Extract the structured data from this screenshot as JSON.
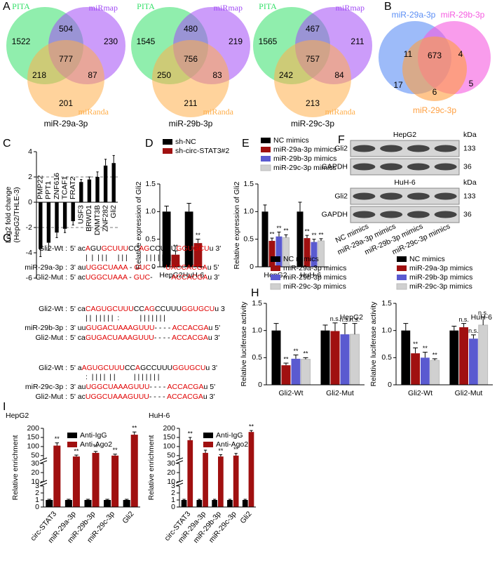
{
  "venn_a": {
    "panel_label": "A",
    "diagrams": [
      {
        "title": "miR-29a-3p",
        "sets": [
          {
            "name": "PITA",
            "color": "#35e06a"
          },
          {
            "name": "miRmap",
            "color": "#a24bf5"
          },
          {
            "name": "miRanda",
            "color": "#ffae4a"
          }
        ],
        "regions": [
          1522,
          504,
          230,
          777,
          218,
          87,
          201
        ]
      },
      {
        "title": "miR-29b-3p",
        "sets": [
          {
            "name": "PITA",
            "color": "#35e06a"
          },
          {
            "name": "miRmap",
            "color": "#a24bf5"
          },
          {
            "name": "miRanda",
            "color": "#ffae4a"
          }
        ],
        "regions": [
          1545,
          480,
          219,
          756,
          250,
          83,
          211
        ]
      },
      {
        "title": "miR-29c-3p",
        "sets": [
          {
            "name": "PITA",
            "color": "#35e06a"
          },
          {
            "name": "miRmap",
            "color": "#a24bf5"
          },
          {
            "name": "miRanda",
            "color": "#ffae4a"
          }
        ],
        "regions": [
          1565,
          467,
          211,
          757,
          242,
          84,
          213
        ]
      }
    ]
  },
  "venn_b": {
    "panel_label": "B",
    "sets": [
      {
        "name": "miR-29a-3p",
        "color": "#5b8ef5"
      },
      {
        "name": "miR-29b-3p",
        "color": "#f55ae0"
      },
      {
        "name": "miR-29c-3p",
        "color": "#ff9f40"
      }
    ],
    "regions": [
      11,
      673,
      4,
      17,
      6,
      5
    ]
  },
  "chart_data": [
    {
      "type": "bar",
      "panel_label": "C",
      "y_label": [
        "Log2 fold change",
        "(HepG2/THLE-3)"
      ],
      "categories": [
        "PMP22",
        "PPT1",
        "ZNF616",
        "TCAF1",
        "FRAT2",
        "USF3",
        "BRWD1",
        "DNMT3B",
        "ZNF282",
        "Gli2"
      ],
      "values": [
        -3.7,
        -3.2,
        -2.4,
        -2.1,
        -1.5,
        1.6,
        1.8,
        2.0,
        2.9,
        3.1
      ],
      "errors": [
        0.6,
        0.6,
        0.4,
        0.3,
        0.3,
        0.2,
        0.2,
        0.4,
        0.5,
        0.6
      ],
      "color": "#000000",
      "ylim": [
        -6,
        4
      ],
      "yticks": [
        -6,
        -4,
        -2,
        0,
        2,
        4
      ],
      "reference_lines": [
        -2,
        2
      ]
    },
    {
      "type": "bar",
      "panel_label": "D",
      "y_label": "Relative expression of Gli2",
      "categories": [
        "HepG2",
        "HuH-6"
      ],
      "series": [
        {
          "name": "sh-NC",
          "color": "#000000",
          "values": [
            1.0,
            1.0
          ],
          "errors": [
            0.1,
            0.15
          ]
        },
        {
          "name": "sh-circ-STAT3#2",
          "color": "#a01010",
          "values": [
            0.22,
            0.43
          ],
          "errors": [
            0.07,
            0.07
          ],
          "significance": [
            "**",
            "**"
          ]
        }
      ],
      "ylim": [
        0,
        1.5
      ],
      "yticks": [
        0,
        0.5,
        {
          "value": 1,
          "label": "1.0"
        },
        1.5
      ]
    },
    {
      "type": "bar",
      "panel_label": "E",
      "y_label": "Relative expression of Gli2",
      "categories": [
        "HepG2",
        "HuH-6"
      ],
      "series": [
        {
          "name": "NC mimics",
          "color": "#000000",
          "values": [
            1.0,
            1.0
          ],
          "errors": [
            0.12,
            0.17
          ]
        },
        {
          "name": "miR-29a-3p mimics",
          "color": "#a01010",
          "values": [
            0.47,
            0.52
          ],
          "errors": [
            0.05,
            0.05
          ],
          "significance": [
            "**",
            "**"
          ]
        },
        {
          "name": "miR-29b-3p mimics",
          "color": "#5a5ad0",
          "values": [
            0.55,
            0.45
          ],
          "errors": [
            0.08,
            0.05
          ],
          "significance": [
            "**",
            "**"
          ]
        },
        {
          "name": "miR-29c-3p mimics",
          "color": "#d0d0d0",
          "values": [
            0.53,
            0.47
          ],
          "errors": [
            0.05,
            0.04
          ],
          "significance": [
            "**",
            "**"
          ]
        }
      ],
      "ylim": [
        0,
        1.5
      ],
      "yticks": [
        0,
        0.5,
        {
          "value": 1,
          "label": "1.0"
        },
        1.5
      ]
    },
    {
      "type": "bar",
      "panel_label": "H",
      "annotation": "HepG2",
      "y_label": "Relative luciferase activity",
      "categories": [
        "Gli2-Wt",
        "Gli2-Mut"
      ],
      "series": [
        {
          "name": "NC mimics",
          "color": "#000000",
          "values": [
            1.0,
            1.0
          ],
          "errors": [
            0.13,
            0.1
          ]
        },
        {
          "name": "miR-29a-3p mimics",
          "color": "#a01010",
          "values": [
            0.36,
            0.99
          ],
          "errors": [
            0.04,
            0.15
          ],
          "significance": [
            "**",
            "n.s."
          ]
        },
        {
          "name": "miR-29b-3p mimics",
          "color": "#5a5ad0",
          "values": [
            0.48,
            0.93
          ],
          "errors": [
            0.07,
            0.2
          ],
          "significance": [
            "**",
            "n.s."
          ]
        },
        {
          "name": "miR-29c-3p mimics",
          "color": "#d0d0d0",
          "values": [
            0.47,
            0.93
          ],
          "errors": [
            0.03,
            0.2
          ],
          "significance": [
            "**",
            "n.s."
          ]
        }
      ],
      "ylim": [
        0,
        1.5
      ],
      "yticks": [
        0,
        0.5,
        {
          "value": 1,
          "label": "1.0"
        },
        1.5
      ]
    },
    {
      "type": "bar",
      "annotation": "HuH-6",
      "y_label": "Relative luciferase activity",
      "categories": [
        "Gli2-Wt",
        "Gli2-Mut"
      ],
      "series": [
        {
          "name": "NC mimics",
          "color": "#000000",
          "values": [
            1.0,
            1.0
          ],
          "errors": [
            0.13,
            0.08
          ]
        },
        {
          "name": "miR-29a-3p mimics",
          "color": "#a01010",
          "values": [
            0.58,
            1.06
          ],
          "errors": [
            0.1,
            0.07
          ],
          "significance": [
            "**",
            "n.s."
          ]
        },
        {
          "name": "miR-29b-3p mimics",
          "color": "#5a5ad0",
          "values": [
            0.5,
            0.85
          ],
          "errors": [
            0.1,
            0.07
          ],
          "significance": [
            "**",
            "n.s."
          ]
        },
        {
          "name": "miR-29c-3p mimics",
          "color": "#d0d0d0",
          "values": [
            0.45,
            1.1
          ],
          "errors": [
            0.03,
            0.15
          ],
          "significance": [
            "**",
            "n.s."
          ]
        }
      ],
      "ylim": [
        0,
        1.5
      ],
      "yticks": [
        0,
        0.5,
        {
          "value": 1,
          "label": "1.0"
        },
        1.5
      ]
    },
    {
      "type": "bar",
      "panel_label": "I",
      "title": "HepG2",
      "y_label": "Relative enrichment",
      "categories": [
        "circ-STAT3",
        "miR-29a-3p",
        "miR-29b-3p",
        "miR-29c-3p",
        "Gli2"
      ],
      "series": [
        {
          "name": "Anti-IgG",
          "color": "#000000",
          "values": [
            1,
            1,
            1,
            1,
            1
          ],
          "errors": [
            0.1,
            0.1,
            0.1,
            0.1,
            0.1
          ]
        },
        {
          "name": "Anti-Ago2",
          "color": "#a01010",
          "values": [
            105,
            45,
            65,
            50,
            165
          ],
          "errors": [
            15,
            8,
            8,
            8,
            15
          ],
          "significance": [
            "**",
            "**",
            "**",
            "**",
            "**"
          ]
        }
      ],
      "y_segments": [
        {
          "ylim": [
            0,
            3
          ],
          "yticks": [
            0,
            1,
            2,
            3
          ]
        },
        {
          "ylim": [
            10,
            30
          ],
          "yticks": [
            10,
            20,
            30
          ]
        },
        {
          "ylim": [
            30,
            200
          ],
          "yticks": [
            50,
            100,
            150,
            200
          ]
        }
      ]
    },
    {
      "type": "bar",
      "title": "HuH-6",
      "y_label": "Relative enrichment",
      "categories": [
        "circ-STAT3",
        "miR-29a-3p",
        "miR-29b-3p",
        "miR-29c-3p",
        "Gli2"
      ],
      "series": [
        {
          "name": "Anti-IgG",
          "color": "#000000",
          "values": [
            1,
            1,
            1,
            1,
            1
          ],
          "errors": [
            0.1,
            0.1,
            0.1,
            0.1,
            0.1
          ]
        },
        {
          "name": "Anti-Ago2",
          "color": "#a01010",
          "values": [
            135,
            65,
            45,
            50,
            180
          ],
          "errors": [
            15,
            15,
            10,
            12,
            8
          ],
          "significance": [
            "**",
            "**",
            "**",
            "**",
            "**"
          ]
        }
      ],
      "y_segments": [
        {
          "ylim": [
            0,
            3
          ],
          "yticks": [
            0,
            1,
            2,
            3
          ]
        },
        {
          "ylim": [
            10,
            30
          ],
          "yticks": [
            10,
            20,
            30
          ]
        },
        {
          "ylim": [
            30,
            200
          ],
          "yticks": [
            50,
            100,
            150,
            200
          ]
        }
      ]
    }
  ],
  "western_blot": {
    "panel_label": "F",
    "unit": "kDa",
    "blocks": [
      {
        "cell": "HepG2",
        "rows": [
          {
            "protein": "Gli2",
            "kda": 133
          },
          {
            "protein": "GAPDH",
            "kda": 36
          }
        ]
      },
      {
        "cell": "HuH-6",
        "rows": [
          {
            "protein": "Gli2",
            "kda": 133
          },
          {
            "protein": "GAPDH",
            "kda": 36
          }
        ]
      }
    ],
    "lanes": [
      "NC mimics",
      "miR-29a-3p mimics",
      "miR-29b-3p mimics",
      "miR-29c-3p mimics"
    ]
  },
  "alignments": {
    "panel_label": "G",
    "blocks": [
      {
        "pairing": "|  |  | | |     | | |         | | | | | | |",
        "rows": [
          {
            "name": "Gli2-Wt :",
            "segments": [
              {
                "text": "5' ac"
              },
              {
                "text": "A",
                "color": "#e00000"
              },
              {
                "text": "GU"
              },
              {
                "text": "GCUUU",
                "color": "#e00000"
              },
              {
                "text": "CC"
              },
              {
                "text": "AG",
                "color": "#e00000"
              },
              {
                "text": "CCUUU"
              },
              {
                "text": "GGUGCU",
                "color": "#e00000"
              },
              {
                "text": "u 3'"
              }
            ]
          },
          {
            "name": "miR-29a-3p :",
            "segments": [
              {
                "text": "3' au"
              },
              {
                "text": "UGGCUAAA",
                "color": "#e00000"
              },
              {
                "text": " - "
              },
              {
                "text": "GUC",
                "color": "#e00000"
              },
              {
                "text": " -    -"
              },
              {
                "text": "UACCACGA",
                "color": "#e00000"
              },
              {
                "text": "u 5'"
              }
            ]
          },
          {
            "name": "Gli2-Mut :",
            "segments": [
              {
                "text": "5' ac"
              },
              {
                "text": "UGGCUAAA",
                "color": "#e00000"
              },
              {
                "text": " - "
              },
              {
                "text": "GUC",
                "color": "#e00000"
              },
              {
                "text": "-        -"
              },
              {
                "text": "ACCACGA",
                "color": "#e00000"
              },
              {
                "text": "u 3'"
              }
            ]
          }
        ]
      },
      {
        "pairing": "| |  | | | | |  :          | | | | | | |",
        "rows": [
          {
            "name": "Gli2-Wt :",
            "segments": [
              {
                "text": "5' ca"
              },
              {
                "text": "CAGUGCUUU",
                "color": "#e00000"
              },
              {
                "text": "CC"
              },
              {
                "text": "AG",
                "color": "#e00000"
              },
              {
                "text": "CCUUU"
              },
              {
                "text": "GGUGCU",
                "color": "#e00000"
              },
              {
                "text": "u 3"
              }
            ]
          },
          {
            "name": "miR-29b-3p :",
            "segments": [
              {
                "text": "3' uu"
              },
              {
                "text": "GUGACUAAAGUUU",
                "color": "#e00000"
              },
              {
                "text": "- - - - "
              },
              {
                "text": "ACCACGA",
                "color": "#e00000"
              },
              {
                "text": "u 5'"
              }
            ]
          },
          {
            "name": "Gli2-Mut :",
            "segments": [
              {
                "text": "5' ca"
              },
              {
                "text": "GUGACUAAAGUUU",
                "color": "#e00000"
              },
              {
                "text": "- - - - "
              },
              {
                "text": "ACCACGA",
                "color": "#e00000"
              },
              {
                "text": "u 3'"
              }
            ]
          }
        ]
      },
      {
        "pairing": ":  | | | |  | |         | | | | | | |",
        "rows": [
          {
            "name": "Gli2-Wt :",
            "segments": [
              {
                "text": "5' a"
              },
              {
                "text": "AGUGCUUU",
                "color": "#e00000"
              },
              {
                "text": "CC"
              },
              {
                "text": "A",
                "color": "#e00000"
              },
              {
                "text": "GCCUUU"
              },
              {
                "text": "GGUGCU",
                "color": "#e00000"
              },
              {
                "text": "u 3'"
              }
            ]
          },
          {
            "name": "miR-29c-3p :",
            "segments": [
              {
                "text": "3' au"
              },
              {
                "text": "UGGCUAAAGUUU",
                "color": "#e00000"
              },
              {
                "text": "- - - - "
              },
              {
                "text": "ACCACGA",
                "color": "#e00000"
              },
              {
                "text": "u 5'"
              }
            ]
          },
          {
            "name": "Gli2-Mut :",
            "segments": [
              {
                "text": "5' ac"
              },
              {
                "text": "UGGCUAAAGUUU",
                "color": "#e00000"
              },
              {
                "text": "- - - - "
              },
              {
                "text": "ACCACGA",
                "color": "#e00000"
              },
              {
                "text": "u 3'"
              }
            ]
          }
        ]
      }
    ]
  }
}
